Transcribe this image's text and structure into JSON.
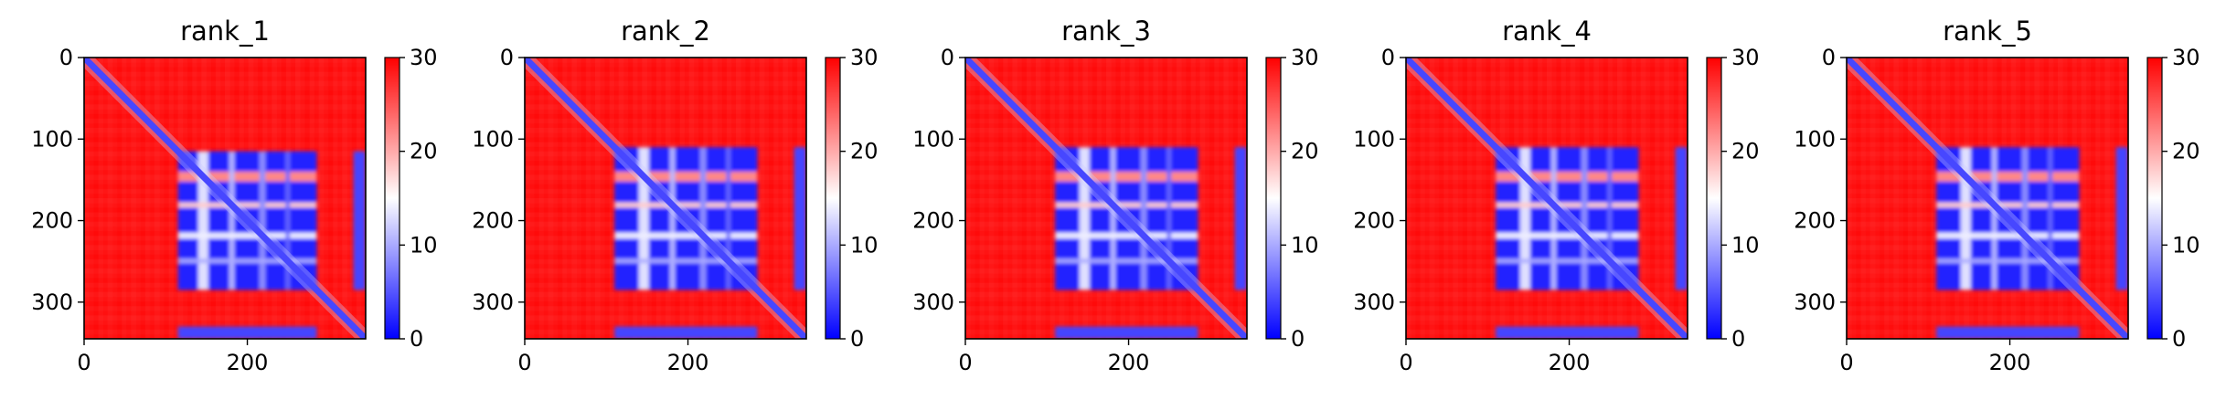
{
  "figure": {
    "title": "",
    "colormap": "bwr",
    "colors": {
      "low": "#0000ff",
      "mid": "#ffffff",
      "high": "#ff0000",
      "frame": "#000000"
    }
  },
  "chart_data": [
    {
      "type": "heatmap",
      "title": "rank_1",
      "xlabel": "",
      "ylabel": "",
      "xlim": [
        0,
        345
      ],
      "ylim": [
        345,
        0
      ],
      "x_ticks": [
        "0",
        "200"
      ],
      "y_ticks": [
        "0",
        "100",
        "200",
        "300"
      ],
      "color_scale": {
        "min": 0,
        "max": 30,
        "ticks": [
          "0",
          "10",
          "20",
          "30"
        ]
      },
      "description_values": {
        "low_block": [
          115,
          285
        ],
        "low_strip": [
          330,
          345
        ],
        "diagonal": "low"
      }
    },
    {
      "type": "heatmap",
      "title": "rank_2",
      "xlabel": "",
      "ylabel": "",
      "xlim": [
        0,
        345
      ],
      "ylim": [
        345,
        0
      ],
      "x_ticks": [
        "0",
        "200"
      ],
      "y_ticks": [
        "0",
        "100",
        "200",
        "300"
      ],
      "color_scale": {
        "min": 0,
        "max": 30,
        "ticks": [
          "0",
          "10",
          "20",
          "30"
        ]
      },
      "description_values": {
        "low_block": [
          110,
          285
        ],
        "low_strip": [
          330,
          345
        ],
        "diagonal": "low"
      }
    },
    {
      "type": "heatmap",
      "title": "rank_3",
      "xlabel": "",
      "ylabel": "",
      "xlim": [
        0,
        345
      ],
      "ylim": [
        345,
        0
      ],
      "x_ticks": [
        "0",
        "200"
      ],
      "y_ticks": [
        "0",
        "100",
        "200",
        "300"
      ],
      "color_scale": {
        "min": 0,
        "max": 30,
        "ticks": [
          "0",
          "10",
          "20",
          "30"
        ]
      },
      "description_values": {
        "low_block": [
          110,
          285
        ],
        "low_strip": [
          330,
          345
        ],
        "diagonal": "low"
      }
    },
    {
      "type": "heatmap",
      "title": "rank_4",
      "xlabel": "",
      "ylabel": "",
      "xlim": [
        0,
        345
      ],
      "ylim": [
        345,
        0
      ],
      "x_ticks": [
        "0",
        "200"
      ],
      "y_ticks": [
        "0",
        "100",
        "200",
        "300"
      ],
      "color_scale": {
        "min": 0,
        "max": 30,
        "ticks": [
          "0",
          "10",
          "20",
          "30"
        ]
      },
      "description_values": {
        "low_block": [
          110,
          285
        ],
        "low_strip": [
          330,
          345
        ],
        "diagonal": "low"
      }
    },
    {
      "type": "heatmap",
      "title": "rank_5",
      "xlabel": "",
      "ylabel": "",
      "xlim": [
        0,
        345
      ],
      "ylim": [
        345,
        0
      ],
      "x_ticks": [
        "0",
        "200"
      ],
      "y_ticks": [
        "0",
        "100",
        "200",
        "300"
      ],
      "color_scale": {
        "min": 0,
        "max": 30,
        "ticks": [
          "0",
          "10",
          "20",
          "30"
        ]
      },
      "description_values": {
        "low_block": [
          110,
          285
        ],
        "low_strip": [
          330,
          345
        ],
        "diagonal": "low"
      }
    }
  ]
}
